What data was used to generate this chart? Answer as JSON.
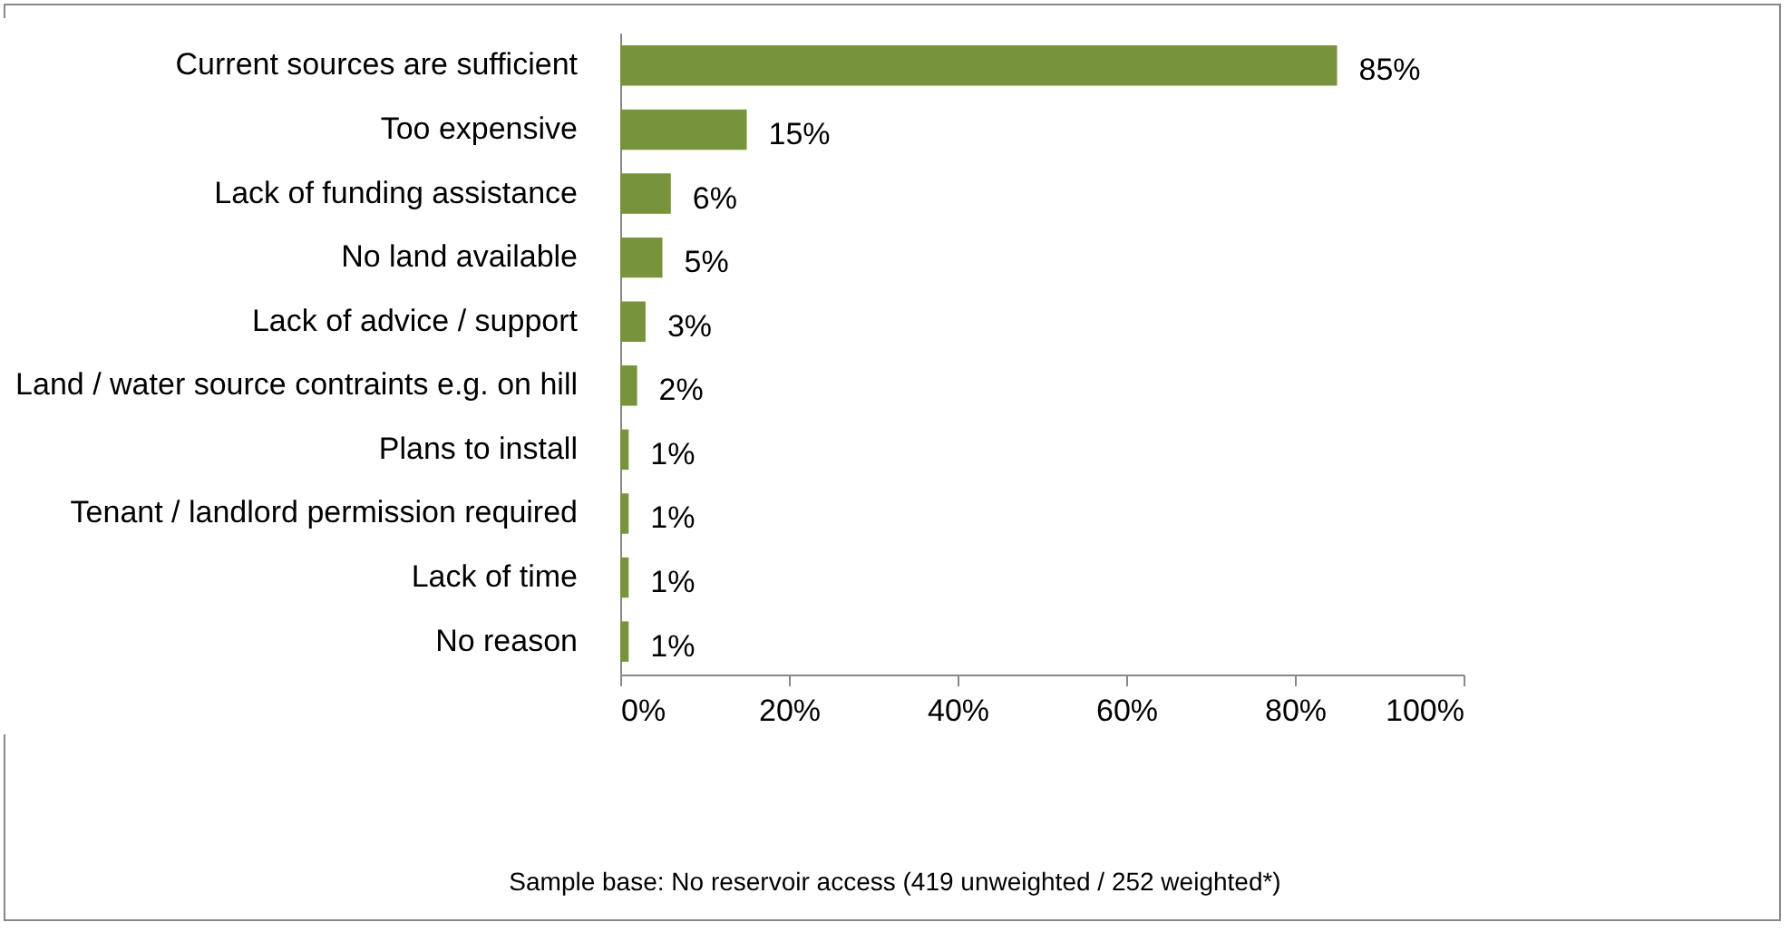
{
  "chart_data": {
    "type": "bar",
    "orientation": "horizontal",
    "categories": [
      "Current sources are sufficient",
      "Too expensive",
      "Lack of funding assistance",
      "No land available",
      "Lack of advice / support",
      "Land / water source contraints e.g. on hill",
      "Plans to install",
      "Tenant / landlord permission required",
      "Lack of time",
      "No reason"
    ],
    "values": [
      85,
      15,
      6,
      5,
      3,
      2,
      1,
      1,
      1,
      1
    ],
    "value_labels": [
      "85%",
      "15%",
      "6%",
      "5%",
      "3%",
      "2%",
      "1%",
      "1%",
      "1%",
      "1%"
    ],
    "color": "#77933c",
    "xlim": [
      0,
      100
    ],
    "xticks": [
      {
        "value": 0,
        "label": "0%"
      },
      {
        "value": 20,
        "label": "20%"
      },
      {
        "value": 40,
        "label": "40%"
      },
      {
        "value": 60,
        "label": "60%"
      },
      {
        "value": 80,
        "label": "80%"
      },
      {
        "value": 100,
        "label": "100%"
      }
    ],
    "annotations": [
      "Sample base: No reservoir access (419 unweighted / 252 weighted*)"
    ]
  }
}
